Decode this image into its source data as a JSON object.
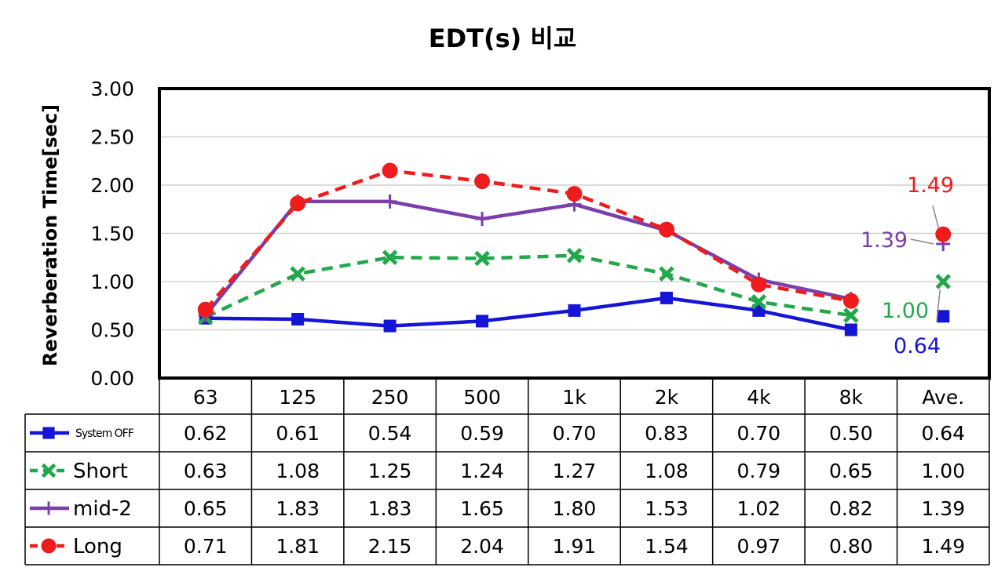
{
  "chart_data": {
    "type": "line",
    "title": "EDT(s) 비교",
    "ylabel": "Reverberation Time[sec]",
    "ylim": [
      0,
      3
    ],
    "yticks": [
      "0.00",
      "0.50",
      "1.00",
      "1.50",
      "2.00",
      "2.50",
      "3.00"
    ],
    "categories": [
      "63",
      "125",
      "250",
      "500",
      "1k",
      "2k",
      "4k",
      "8k",
      "Ave."
    ],
    "grid": "horizontal",
    "legend": "table-left",
    "series": [
      {
        "name": "System OFF",
        "color": "#1515d6",
        "marker": "square",
        "dash": "solid",
        "values": [
          0.62,
          0.61,
          0.54,
          0.59,
          0.7,
          0.83,
          0.7,
          0.5,
          0.64
        ],
        "display": [
          "0.62",
          "0.61",
          "0.54",
          "0.59",
          "0.70",
          "0.83",
          "0.70",
          "0.50",
          "0.64"
        ]
      },
      {
        "name": "Short",
        "color": "#22a84a",
        "marker": "x",
        "dash": "dashed",
        "values": [
          0.63,
          1.08,
          1.25,
          1.24,
          1.27,
          1.08,
          0.79,
          0.65,
          1.0
        ],
        "display": [
          "0.63",
          "1.08",
          "1.25",
          "1.24",
          "1.27",
          "1.08",
          "0.79",
          "0.65",
          "1.00"
        ]
      },
      {
        "name": "mid-2",
        "color": "#7a3fa8",
        "marker": "plus",
        "dash": "solid",
        "values": [
          0.65,
          1.83,
          1.83,
          1.65,
          1.8,
          1.53,
          1.02,
          0.82,
          1.39
        ],
        "display": [
          "0.65",
          "1.83",
          "1.83",
          "1.65",
          "1.80",
          "1.53",
          "1.02",
          "0.82",
          "1.39"
        ]
      },
      {
        "name": "Long",
        "color": "#ee1c1c",
        "marker": "circle",
        "dash": "dashed",
        "values": [
          0.71,
          1.81,
          2.15,
          2.04,
          1.91,
          1.54,
          0.97,
          0.8,
          1.49
        ],
        "display": [
          "0.71",
          "1.81",
          "2.15",
          "2.04",
          "1.91",
          "1.54",
          "0.97",
          "0.80",
          "1.49"
        ]
      }
    ],
    "annotations": [
      {
        "series": "Long",
        "text": "1.49"
      },
      {
        "series": "mid-2",
        "text": "1.39"
      },
      {
        "series": "Short",
        "text": "1.00"
      },
      {
        "series": "System OFF",
        "text": "0.64"
      }
    ]
  }
}
